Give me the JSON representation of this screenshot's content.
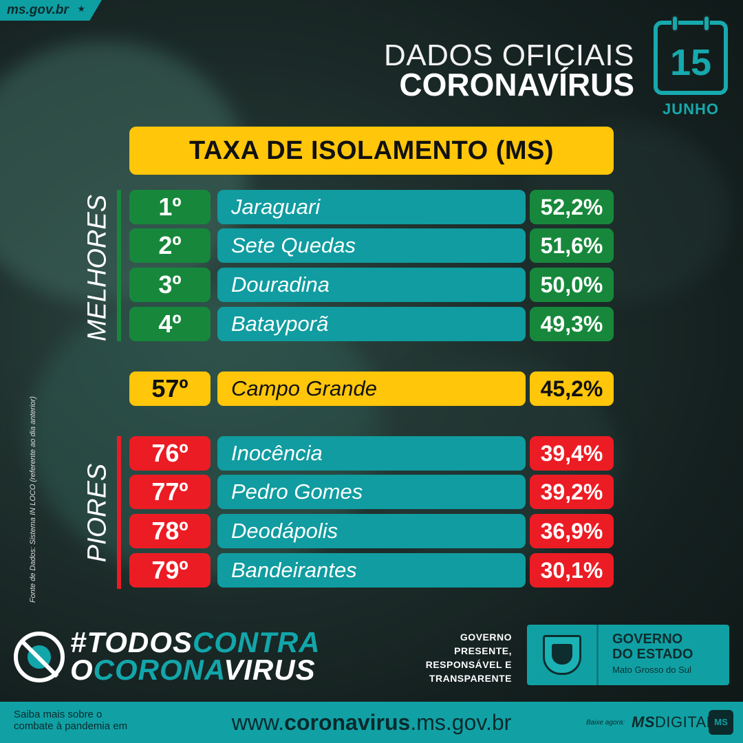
{
  "site_tag": "ms.gov.br",
  "header": {
    "line1": "DADOS OFICIAIS",
    "line2": "CORONAVÍRUS",
    "calendar_day": "15",
    "calendar_month": "JUNHO"
  },
  "title": "TAXA DE ISOLAMENTO (MS)",
  "best_label": "MELHORES",
  "worst_label": "PIORES",
  "best": [
    {
      "rank": "1º",
      "city": "Jaraguari",
      "pct": "52,2%"
    },
    {
      "rank": "2º",
      "city": "Sete Quedas",
      "pct": "51,6%"
    },
    {
      "rank": "3º",
      "city": "Douradina",
      "pct": "50,0%"
    },
    {
      "rank": "4º",
      "city": "Batayporã",
      "pct": "49,3%"
    }
  ],
  "capital": {
    "rank": "57º",
    "city": "Campo Grande",
    "pct": "45,2%"
  },
  "worst": [
    {
      "rank": "76º",
      "city": "Inocência",
      "pct": "39,4%"
    },
    {
      "rank": "77º",
      "city": "Pedro Gomes",
      "pct": "39,2%"
    },
    {
      "rank": "78º",
      "city": "Deodápolis",
      "pct": "36,9%"
    },
    {
      "rank": "79º",
      "city": "Bandeirantes",
      "pct": "30,1%"
    }
  ],
  "source": "Fonte de Dados: Sistema IN LOCO (referente ao dia anterior)",
  "campaign": {
    "l1_white": "#TODOS",
    "l1_teal": "CONTRA",
    "l2_white": "O",
    "l2_teal": "CORONA",
    "l2_white2": "VIRUS"
  },
  "gov_slogan": [
    "GOVERNO",
    "PRESENTE,",
    "RESPONSÁVEL E",
    "TRANSPARENTE"
  ],
  "gov_box": {
    "line1": "GOVERNO",
    "line2": "DO ESTADO",
    "line3": "Mato Grosso do Sul"
  },
  "footer": {
    "left1": "Saiba mais sobre o",
    "left2": "combate à pandemia em",
    "url_pre": "www.",
    "url_bold": "coronavirus",
    "url_post": ".ms.gov.br",
    "baixe": "Baixe agora:",
    "app_bold": "MS",
    "app_rest": "DIGITAL",
    "app_icon": "MS"
  },
  "colors": {
    "teal": "#109ca0",
    "green": "#17883b",
    "yellow": "#ffc60a",
    "red": "#ec1c24"
  },
  "icons": [
    "star-icon",
    "calendar-icon",
    "crossed-virus-icon",
    "state-crest-icon",
    "ms-digital-app-icon"
  ]
}
